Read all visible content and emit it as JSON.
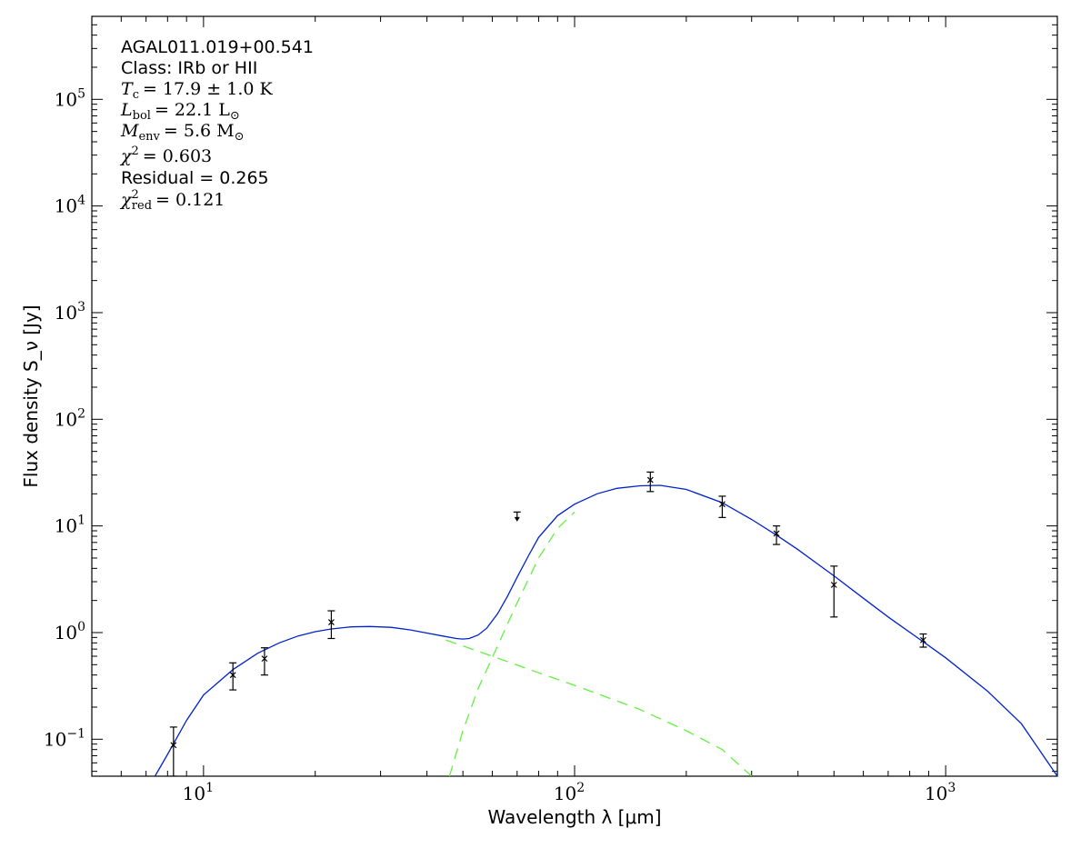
{
  "chart_data": {
    "type": "scatter",
    "xscale": "log",
    "yscale": "log",
    "xlim": [
      5,
      2000
    ],
    "ylim": [
      0.045,
      600000
    ],
    "xlabel": "Wavelength λ [μm]",
    "ylabel": "Flux density S_ν [Jy]",
    "xticks": [
      {
        "base": "10",
        "exp": "1",
        "value": 10
      },
      {
        "base": "10",
        "exp": "2",
        "value": 100
      },
      {
        "base": "10",
        "exp": "3",
        "value": 1000
      }
    ],
    "yticks": [
      {
        "base": "10",
        "exp": "−1",
        "value": 0.1
      },
      {
        "base": "10",
        "exp": "0",
        "value": 1
      },
      {
        "base": "10",
        "exp": "1",
        "value": 10
      },
      {
        "base": "10",
        "exp": "2",
        "value": 100
      },
      {
        "base": "10",
        "exp": "3",
        "value": 1000
      },
      {
        "base": "10",
        "exp": "4",
        "value": 10000
      },
      {
        "base": "10",
        "exp": "5",
        "value": 100000
      }
    ],
    "annotations": {
      "source": "AGAL011.019+00.541",
      "class_line": "Class: IRb or HII",
      "tc": {
        "symbol": "T",
        "sub": "c",
        "value": "= 17.9 ± 1.0 K"
      },
      "lbol": {
        "symbol": "L",
        "sub": "bol",
        "value": "= 22.1 L",
        "unit_sub": "⊙"
      },
      "menv": {
        "symbol": "M",
        "sub": "env",
        "value": "= 5.6 M",
        "unit_sub": "⊙"
      },
      "chi2": {
        "symbol": "χ",
        "sup": "2",
        "value": "= 0.603"
      },
      "residual": "Residual = 0.265",
      "chi2red": {
        "symbol": "χ",
        "sup": "2",
        "sub": "red",
        "value": "= 0.121"
      }
    },
    "points": [
      {
        "x": 8.3,
        "y": 0.088,
        "ylo": 0.045,
        "yhi": 0.13
      },
      {
        "x": 12.0,
        "y": 0.4,
        "ylo": 0.29,
        "yhi": 0.52
      },
      {
        "x": 14.6,
        "y": 0.57,
        "ylo": 0.4,
        "yhi": 0.72
      },
      {
        "x": 22.1,
        "y": 1.25,
        "ylo": 0.88,
        "yhi": 1.6
      },
      {
        "x": 160,
        "y": 27,
        "ylo": 21,
        "yhi": 32
      },
      {
        "x": 250,
        "y": 16,
        "ylo": 12,
        "yhi": 19
      },
      {
        "x": 350,
        "y": 8.5,
        "ylo": 6.7,
        "yhi": 10
      },
      {
        "x": 500,
        "y": 2.8,
        "ylo": 1.4,
        "yhi": 4.2
      },
      {
        "x": 870,
        "y": 0.85,
        "ylo": 0.73,
        "yhi": 0.97
      }
    ],
    "upper_limits": [
      {
        "x": 70,
        "y": 13.5,
        "y_arrow_to": 11.2
      }
    ],
    "series": [
      {
        "style": "solid",
        "color": "#0022cc",
        "points": [
          [
            7.4,
            0.045
          ],
          [
            8,
            0.072
          ],
          [
            9,
            0.15
          ],
          [
            10,
            0.26
          ],
          [
            12,
            0.45
          ],
          [
            14,
            0.64
          ],
          [
            16,
            0.8
          ],
          [
            18,
            0.93
          ],
          [
            20,
            1.02
          ],
          [
            22,
            1.08
          ],
          [
            25,
            1.13
          ],
          [
            28,
            1.14
          ],
          [
            32,
            1.12
          ],
          [
            36,
            1.06
          ],
          [
            40,
            0.99
          ],
          [
            44,
            0.93
          ],
          [
            48,
            0.88
          ],
          [
            50,
            0.87
          ],
          [
            52,
            0.88
          ],
          [
            55,
            0.95
          ],
          [
            58,
            1.1
          ],
          [
            62,
            1.5
          ],
          [
            66,
            2.2
          ],
          [
            70,
            3.3
          ],
          [
            75,
            5.2
          ],
          [
            80,
            7.8
          ],
          [
            90,
            12.5
          ],
          [
            100,
            16.0
          ],
          [
            115,
            20.0
          ],
          [
            130,
            22.5
          ],
          [
            150,
            23.8
          ],
          [
            170,
            24.0
          ],
          [
            200,
            22.0
          ],
          [
            250,
            16.5
          ],
          [
            300,
            11.5
          ],
          [
            350,
            8.2
          ],
          [
            400,
            6.0
          ],
          [
            500,
            3.4
          ],
          [
            600,
            2.1
          ],
          [
            700,
            1.4
          ],
          [
            870,
            0.82
          ],
          [
            1000,
            0.58
          ],
          [
            1300,
            0.28
          ],
          [
            1600,
            0.14
          ],
          [
            2000,
            0.045
          ]
        ]
      },
      {
        "style": "dashed",
        "color": "#66ee44",
        "points": [
          [
            45,
            0.85
          ],
          [
            50,
            0.75
          ],
          [
            60,
            0.6
          ],
          [
            80,
            0.42
          ],
          [
            100,
            0.32
          ],
          [
            150,
            0.19
          ],
          [
            200,
            0.12
          ],
          [
            250,
            0.08
          ],
          [
            300,
            0.045
          ]
        ]
      },
      {
        "style": "dashed",
        "color": "#66ee44",
        "points": [
          [
            46,
            0.045
          ],
          [
            50,
            0.12
          ],
          [
            55,
            0.3
          ],
          [
            62,
            0.75
          ],
          [
            70,
            1.9
          ],
          [
            80,
            5.0
          ],
          [
            90,
            9.5
          ],
          [
            100,
            13.5
          ]
        ]
      }
    ],
    "colors": {
      "fit": "#0022cc",
      "components": "#66ee44",
      "points": "#000000"
    }
  }
}
